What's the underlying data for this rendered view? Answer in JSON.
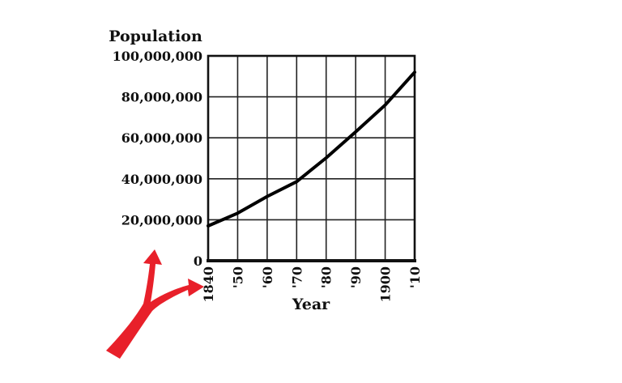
{
  "chart_data": {
    "type": "line",
    "ylabel": "Population",
    "xlabel": "Year",
    "x": [
      1840,
      1850,
      1860,
      1870,
      1880,
      1890,
      1900,
      1910
    ],
    "x_tick_labels": [
      "1840",
      "'50",
      "'60",
      "'70",
      "'80",
      "'90",
      "1900",
      "'10"
    ],
    "y_tick_values": [
      0,
      20000000,
      40000000,
      60000000,
      80000000,
      100000000
    ],
    "y_tick_labels": [
      "0",
      "20,000,000",
      "40,000,000",
      "60,000,000",
      "80,000,000",
      "100,000,000"
    ],
    "ylim": [
      0,
      100000000
    ],
    "xlim": [
      1840,
      1910
    ],
    "grid": true,
    "series": [
      {
        "values": [
          17000000,
          23200000,
          31400000,
          38600000,
          50200000,
          62900000,
          76000000,
          92000000
        ],
        "color": "#000000"
      }
    ],
    "annotations": [
      {
        "type": "arrow",
        "meaning": "splits toward y-axis origin and x-axis origin",
        "color": "#e8202a"
      }
    ]
  }
}
